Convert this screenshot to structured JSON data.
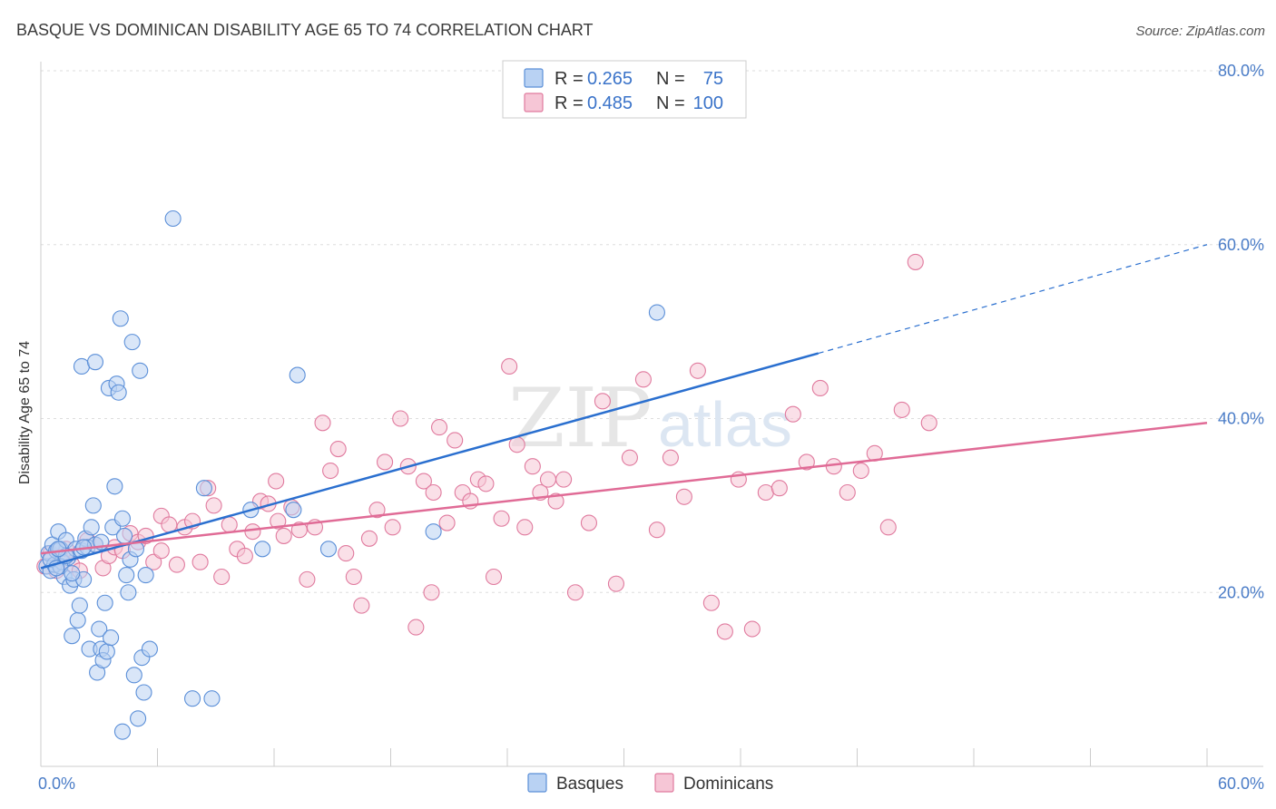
{
  "title": "BASQUE VS DOMINICAN DISABILITY AGE 65 TO 74 CORRELATION CHART",
  "source": "Source: ZipAtlas.com",
  "watermark": {
    "zip": "ZIP",
    "atlas": "atlas"
  },
  "colors": {
    "blue": "#5b8fd8",
    "blue_fill": "#b9d2f3",
    "blue_line": "#2a6fcf",
    "pink": "#e07a9e",
    "pink_fill": "#f6c6d6",
    "pink_line": "#e06b96",
    "grid": "#dddddd",
    "axis_text": "#4a7cc7"
  },
  "legend": {
    "rows": [
      {
        "r_label": "R =",
        "r_value": "0.265",
        "n_label": "N =",
        "n_value": "75"
      },
      {
        "r_label": "R =",
        "r_value": "0.485",
        "n_label": "N =",
        "n_value": "100"
      }
    ]
  },
  "bottom_legend": [
    "Basques",
    "Dominicans"
  ],
  "chart_data": {
    "type": "scatter",
    "title": "BASQUE VS DOMINICAN DISABILITY AGE 65 TO 74 CORRELATION CHART",
    "xlabel": "",
    "ylabel": "Disability Age 65 to 74",
    "xlim": [
      0,
      60
    ],
    "ylim": [
      0,
      80
    ],
    "x_ticks": [
      "0.0%",
      "60.0%"
    ],
    "y_ticks": [
      {
        "value": 20,
        "label": "20.0%"
      },
      {
        "value": 40,
        "label": "40.0%"
      },
      {
        "value": 60,
        "label": "60.0%"
      },
      {
        "value": 80,
        "label": "80.0%"
      }
    ],
    "grid": true,
    "legend_position": "top-center",
    "series": [
      {
        "name": "Basques",
        "trend": {
          "x0": 0,
          "y0": 22.8,
          "x1": 40,
          "y1": 47.5,
          "dashed_to_x": 60,
          "dashed_to_y": 60
        },
        "points": [
          [
            0.3,
            23
          ],
          [
            0.4,
            24.5
          ],
          [
            0.5,
            22.5
          ],
          [
            0.6,
            25.5
          ],
          [
            0.7,
            23.2
          ],
          [
            0.8,
            24.8
          ],
          [
            0.9,
            27
          ],
          [
            1.0,
            25
          ],
          [
            1.1,
            23.5
          ],
          [
            1.2,
            21.8
          ],
          [
            1.3,
            26
          ],
          [
            1.4,
            24
          ],
          [
            1.5,
            20.8
          ],
          [
            1.6,
            15
          ],
          [
            1.7,
            21.5
          ],
          [
            1.8,
            25
          ],
          [
            1.9,
            16.8
          ],
          [
            2.0,
            18.5
          ],
          [
            2.1,
            24.8
          ],
          [
            2.2,
            21.5
          ],
          [
            2.3,
            26.2
          ],
          [
            2.4,
            25.2
          ],
          [
            2.5,
            13.5
          ],
          [
            2.6,
            27.5
          ],
          [
            2.7,
            30
          ],
          [
            2.8,
            25.5
          ],
          [
            2.9,
            10.8
          ],
          [
            3.0,
            15.8
          ],
          [
            3.1,
            13.5
          ],
          [
            3.2,
            12.2
          ],
          [
            3.3,
            18.8
          ],
          [
            3.4,
            13.2
          ],
          [
            3.5,
            43.5
          ],
          [
            3.6,
            14.8
          ],
          [
            3.7,
            27.5
          ],
          [
            3.8,
            32.2
          ],
          [
            3.9,
            44
          ],
          [
            4.0,
            43
          ],
          [
            4.1,
            51.5
          ],
          [
            4.2,
            28.5
          ],
          [
            4.3,
            26.5
          ],
          [
            4.4,
            22
          ],
          [
            4.5,
            20
          ],
          [
            4.6,
            23.8
          ],
          [
            4.7,
            48.8
          ],
          [
            4.8,
            10.5
          ],
          [
            4.9,
            25
          ],
          [
            5.0,
            5.5
          ],
          [
            5.1,
            45.5
          ],
          [
            5.2,
            12.5
          ],
          [
            5.3,
            8.5
          ],
          [
            5.4,
            22
          ],
          [
            5.6,
            13.5
          ],
          [
            6.8,
            63
          ],
          [
            7.8,
            7.8
          ],
          [
            8.4,
            32
          ],
          [
            8.8,
            7.8
          ],
          [
            10.8,
            29.5
          ],
          [
            11.4,
            25
          ],
          [
            13.0,
            29.5
          ],
          [
            13.2,
            45
          ],
          [
            14.8,
            25
          ],
          [
            20.2,
            27
          ],
          [
            31.7,
            52.2
          ],
          [
            4.2,
            4
          ],
          [
            2.1,
            46
          ],
          [
            2.8,
            46.5
          ],
          [
            1.0,
            23
          ],
          [
            1.3,
            24.2
          ],
          [
            0.5,
            23.8
          ],
          [
            0.8,
            22.8
          ],
          [
            1.6,
            22.2
          ],
          [
            2.2,
            25.2
          ],
          [
            3.1,
            25.8
          ],
          [
            0.9,
            25
          ]
        ]
      },
      {
        "name": "Dominicans",
        "trend": {
          "x0": 0,
          "y0": 24.5,
          "x1": 60,
          "y1": 39.5
        },
        "points": [
          [
            0.2,
            23
          ],
          [
            0.5,
            24.5
          ],
          [
            0.8,
            22.5
          ],
          [
            1.0,
            24
          ],
          [
            1.3,
            25
          ],
          [
            1.6,
            23.2
          ],
          [
            2.0,
            22.5
          ],
          [
            2.4,
            26
          ],
          [
            2.8,
            25.5
          ],
          [
            3.2,
            22.8
          ],
          [
            3.5,
            24.2
          ],
          [
            3.8,
            25.2
          ],
          [
            4.2,
            24.8
          ],
          [
            4.6,
            26.8
          ],
          [
            5.0,
            25.8
          ],
          [
            5.4,
            26.5
          ],
          [
            5.8,
            23.5
          ],
          [
            6.2,
            28.8
          ],
          [
            6.6,
            27.8
          ],
          [
            7.0,
            23.2
          ],
          [
            7.4,
            27.5
          ],
          [
            7.8,
            28.2
          ],
          [
            8.2,
            23.5
          ],
          [
            8.6,
            32
          ],
          [
            8.9,
            30
          ],
          [
            9.3,
            21.8
          ],
          [
            9.7,
            27.8
          ],
          [
            10.1,
            25
          ],
          [
            10.5,
            24.2
          ],
          [
            10.9,
            27
          ],
          [
            11.3,
            30.5
          ],
          [
            11.7,
            30.2
          ],
          [
            12.1,
            32.8
          ],
          [
            12.5,
            26.5
          ],
          [
            12.9,
            29.8
          ],
          [
            13.3,
            27.2
          ],
          [
            13.7,
            21.5
          ],
          [
            14.1,
            27.5
          ],
          [
            14.5,
            39.5
          ],
          [
            14.9,
            34
          ],
          [
            15.3,
            36.5
          ],
          [
            15.7,
            24.5
          ],
          [
            16.1,
            21.8
          ],
          [
            16.5,
            18.5
          ],
          [
            16.9,
            26.2
          ],
          [
            17.3,
            29.5
          ],
          [
            17.7,
            35
          ],
          [
            18.1,
            27.5
          ],
          [
            18.5,
            40
          ],
          [
            18.9,
            34.5
          ],
          [
            19.3,
            16
          ],
          [
            19.7,
            32.8
          ],
          [
            20.1,
            20
          ],
          [
            20.5,
            39
          ],
          [
            20.9,
            28
          ],
          [
            21.3,
            37.5
          ],
          [
            21.7,
            31.5
          ],
          [
            22.1,
            30.5
          ],
          [
            22.5,
            33
          ],
          [
            22.9,
            32.5
          ],
          [
            23.3,
            21.8
          ],
          [
            23.7,
            28.5
          ],
          [
            24.1,
            46
          ],
          [
            24.5,
            37
          ],
          [
            24.9,
            27.5
          ],
          [
            25.3,
            34.5
          ],
          [
            25.7,
            31.5
          ],
          [
            26.1,
            33
          ],
          [
            26.5,
            30.5
          ],
          [
            26.9,
            33
          ],
          [
            27.5,
            20
          ],
          [
            28.2,
            28
          ],
          [
            28.9,
            42
          ],
          [
            29.6,
            21
          ],
          [
            30.3,
            35.5
          ],
          [
            31.0,
            44.5
          ],
          [
            31.7,
            27.2
          ],
          [
            32.4,
            35.5
          ],
          [
            33.1,
            31
          ],
          [
            33.8,
            45.5
          ],
          [
            34.5,
            18.8
          ],
          [
            35.2,
            15.5
          ],
          [
            35.9,
            33
          ],
          [
            36.6,
            15.8
          ],
          [
            37.3,
            31.5
          ],
          [
            38.0,
            32
          ],
          [
            38.7,
            40.5
          ],
          [
            39.4,
            35
          ],
          [
            40.1,
            43.5
          ],
          [
            40.8,
            34.5
          ],
          [
            41.5,
            31.5
          ],
          [
            42.2,
            34
          ],
          [
            42.9,
            36
          ],
          [
            43.6,
            27.5
          ],
          [
            44.3,
            41
          ],
          [
            45.0,
            58
          ],
          [
            45.7,
            39.5
          ],
          [
            20.2,
            31.5
          ],
          [
            12.2,
            28.2
          ],
          [
            6.2,
            24.8
          ]
        ]
      }
    ]
  }
}
